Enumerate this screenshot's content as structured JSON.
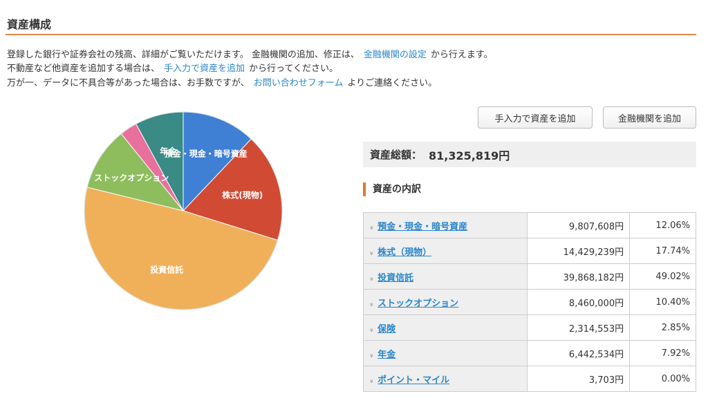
{
  "page": {
    "title": "資産構成",
    "desc_line1_a": "登録した銀行や証券会社の残高、詳細がご覧いただけます。 金融機関の追加、修正は、",
    "desc_line1_link": "金融機関の設定",
    "desc_line1_b": "から行えます。",
    "desc_line2_a": "不動産など他資産を追加する場合は、",
    "desc_line2_link": "手入力で資産を追加",
    "desc_line2_b": "から行ってください。",
    "desc_line3_a": "万が一、データに不具合等があった場合は、お手数ですが、",
    "desc_line3_link": "お問い合わせフォーム",
    "desc_line3_b": "よりご連絡ください。"
  },
  "buttons": {
    "manual_add": "手入力で資産を追加",
    "institution_add": "金融機関を追加"
  },
  "summary": {
    "total_label": "資産総額：",
    "total_value": "81,325,819円",
    "breakdown_title": "資産の内訳"
  },
  "breakdown": [
    {
      "name": "預金・現金・暗号資産",
      "amount": "9,807,608円",
      "percent": "12.06%"
    },
    {
      "name": "株式（現物）",
      "amount": "14,429,239円",
      "percent": "17.74%"
    },
    {
      "name": "投資信託",
      "amount": "39,868,182円",
      "percent": "49.02%"
    },
    {
      "name": "ストックオプション",
      "amount": "8,460,000円",
      "percent": "10.40%"
    },
    {
      "name": "保険",
      "amount": "2,314,553円",
      "percent": "2.85%"
    },
    {
      "name": "年金",
      "amount": "6,442,534円",
      "percent": "7.92%"
    },
    {
      "name": "ポイント・マイル",
      "amount": "3,703円",
      "percent": "0.00%"
    }
  ],
  "colors": {
    "accent_rule": "#e0884a",
    "link": "#2a87c8"
  },
  "chart_data": {
    "type": "pie",
    "slices": [
      {
        "label": "預金・現金・暗号資産",
        "value": 12.06,
        "color": "#3f7fd4"
      },
      {
        "label": "株式(現物)",
        "value": 17.74,
        "color": "#d14a33"
      },
      {
        "label": "投資信託",
        "value": 49.02,
        "color": "#f0b05a"
      },
      {
        "label": "ストックオプション",
        "value": 10.4,
        "color": "#8dbd5c"
      },
      {
        "label": "",
        "value": 2.85,
        "color": "#e8709c"
      },
      {
        "label": "年金",
        "value": 7.92,
        "color": "#3a8a86"
      },
      {
        "label": "",
        "value": 0.0,
        "color": "#9b59b6"
      }
    ]
  }
}
